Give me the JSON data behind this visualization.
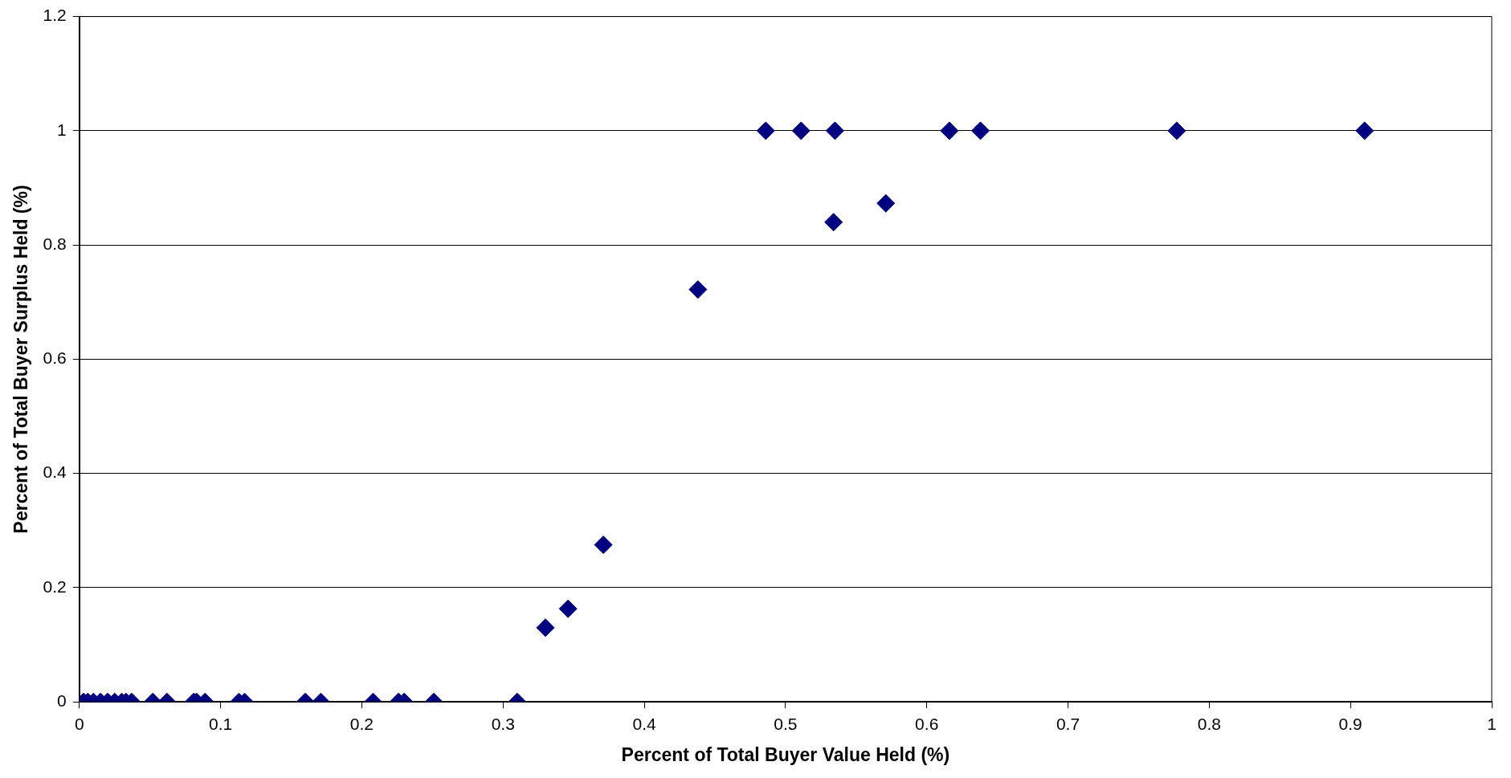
{
  "chart_data": {
    "type": "scatter",
    "xlabel": "Percent of Total Buyer Value Held (%)",
    "ylabel": "Percent of Total Buyer Surplus Held (%)",
    "xlim": [
      0,
      1
    ],
    "xticks": [
      0,
      0.1,
      0.2,
      0.3,
      0.4,
      0.5,
      0.6,
      0.7,
      0.8,
      0.9,
      1
    ],
    "ylim": [
      0,
      1.2
    ],
    "yticks": [
      0,
      0.2,
      0.4,
      0.6,
      0.8,
      1,
      1.2
    ],
    "grid": "y",
    "legend": false,
    "marker": "diamond",
    "series": [
      {
        "color": "#000080",
        "x": [
          0.003,
          0.006,
          0.01,
          0.015,
          0.02,
          0.025,
          0.03,
          0.033,
          0.037,
          0.052,
          0.062,
          0.081,
          0.083,
          0.089,
          0.113,
          0.117,
          0.16,
          0.171,
          0.208,
          0.226,
          0.23,
          0.251,
          0.31,
          0.33,
          0.346,
          0.371,
          0.438,
          0.486,
          0.511,
          0.535,
          0.534,
          0.571,
          0.616,
          0.638,
          0.777,
          0.91
        ],
        "values": [
          0,
          0,
          0,
          0,
          0,
          0,
          0,
          0,
          0,
          0,
          0,
          0,
          0,
          0,
          0,
          0,
          0,
          0,
          0,
          0,
          0,
          0,
          0,
          0.13,
          0.163,
          0.275,
          0.722,
          1,
          1,
          1,
          0.84,
          0.873,
          1,
          1,
          1,
          1
        ]
      }
    ]
  }
}
